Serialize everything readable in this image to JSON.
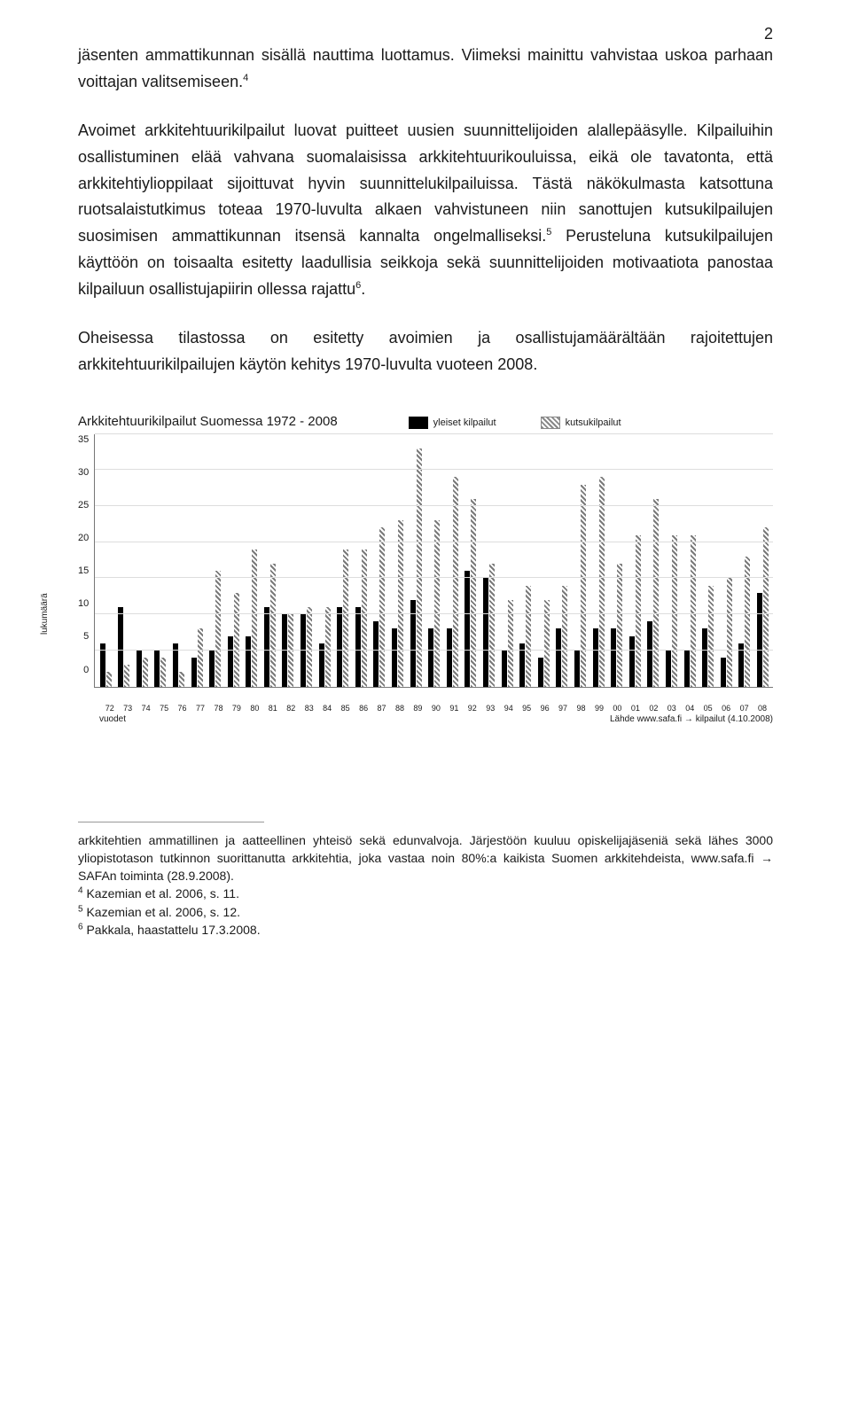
{
  "page_number": "2",
  "paragraphs": {
    "p1a": "jäsenten ammattikunnan sisällä nauttima luottamus. Viimeksi mainittu vahvistaa uskoa parhaan voittajan valitsemiseen.",
    "p1_sup": "4",
    "p2a": "Avoimet arkkitehtuurikilpailut luovat puitteet uusien suunnittelijoiden alallepääsylle. Kilpailuihin osallistuminen elää vahvana suomalaisissa arkkitehtuurikouluissa, eikä ole tavatonta, että arkkitehtiylioppilaat sijoittuvat hyvin suunnittelukilpailuissa. Tästä näkökulmasta katsottuna ruotsalaistutkimus toteaa 1970-luvulta alkaen vahvistuneen niin sanottujen kutsukilpailujen suosimisen ammattikunnan itsensä kannalta ongelmalliseksi.",
    "p2_sup1": "5",
    "p2b": " Perusteluna kutsukilpailujen käyttöön on toisaalta esitetty laadullisia seikkoja sekä suunnittelijoiden motivaatiota panostaa kilpailuun osallistujapiirin ollessa rajattu",
    "p2_sup2": "6",
    "p2c": ".",
    "p3": "Oheisessa tilastossa on esitetty avoimien ja osallistujamäärältään rajoitettujen arkkitehtuurikilpailujen käytön kehitys 1970-luvulta vuoteen 2008."
  },
  "chart": {
    "type": "bar",
    "title": "Arkkitehtuurikilpailut Suomessa 1972 - 2008",
    "legend1": "yleiset kilpailut",
    "legend2": "kutsukilpailut",
    "yaxis_label": "lukumäärä",
    "ylim": [
      0,
      35
    ],
    "yticks": [
      "35",
      "30",
      "25",
      "20",
      "15",
      "10",
      "5",
      "0"
    ],
    "xaxis_label": "vuodet",
    "source_text": "Lähde www.safa.fi → kilpailut (4.10.2008)",
    "solid_color": "#000000",
    "hatch_color": "#7a7a7a",
    "background_color": "#ffffff",
    "grid_color": "#dddddd",
    "years": [
      "72",
      "73",
      "74",
      "75",
      "76",
      "77",
      "78",
      "79",
      "80",
      "81",
      "82",
      "83",
      "84",
      "85",
      "86",
      "87",
      "88",
      "89",
      "90",
      "91",
      "92",
      "93",
      "94",
      "95",
      "96",
      "97",
      "98",
      "99",
      "00",
      "01",
      "02",
      "03",
      "04",
      "05",
      "06",
      "07",
      "08"
    ],
    "series_solid": [
      6,
      11,
      5,
      5,
      6,
      4,
      5,
      7,
      7,
      11,
      10,
      10,
      6,
      11,
      11,
      9,
      8,
      12,
      8,
      8,
      16,
      15,
      5,
      6,
      4,
      8,
      5,
      8,
      8,
      7,
      9,
      5,
      5,
      8,
      4,
      6,
      13
    ],
    "series_hatch": [
      2,
      3,
      4,
      4,
      2,
      8,
      16,
      13,
      19,
      17,
      10,
      11,
      11,
      19,
      19,
      22,
      23,
      33,
      23,
      29,
      26,
      17,
      12,
      14,
      12,
      14,
      28,
      29,
      17,
      21,
      26,
      21,
      21,
      14,
      15,
      18,
      22
    ]
  },
  "footnotes": {
    "main": "arkkitehtien ammatillinen ja aatteellinen yhteisö sekä edunvalvoja. Järjestöön kuuluu opiskelijajäseniä sekä lähes 3000 yliopistotason tutkinnon suorittanutta arkkitehtia, joka vastaa noin 80%:a kaikista Suomen arkkitehdeista, www.safa.fi → SAFAn toiminta (28.9.2008).",
    "n4_sup": "4",
    "n4": " Kazemian et al. 2006, s. 11.",
    "n5_sup": "5",
    "n5": " Kazemian et al. 2006, s. 12.",
    "n6_sup": "6",
    "n6": " Pakkala, haastattelu 17.3.2008."
  }
}
